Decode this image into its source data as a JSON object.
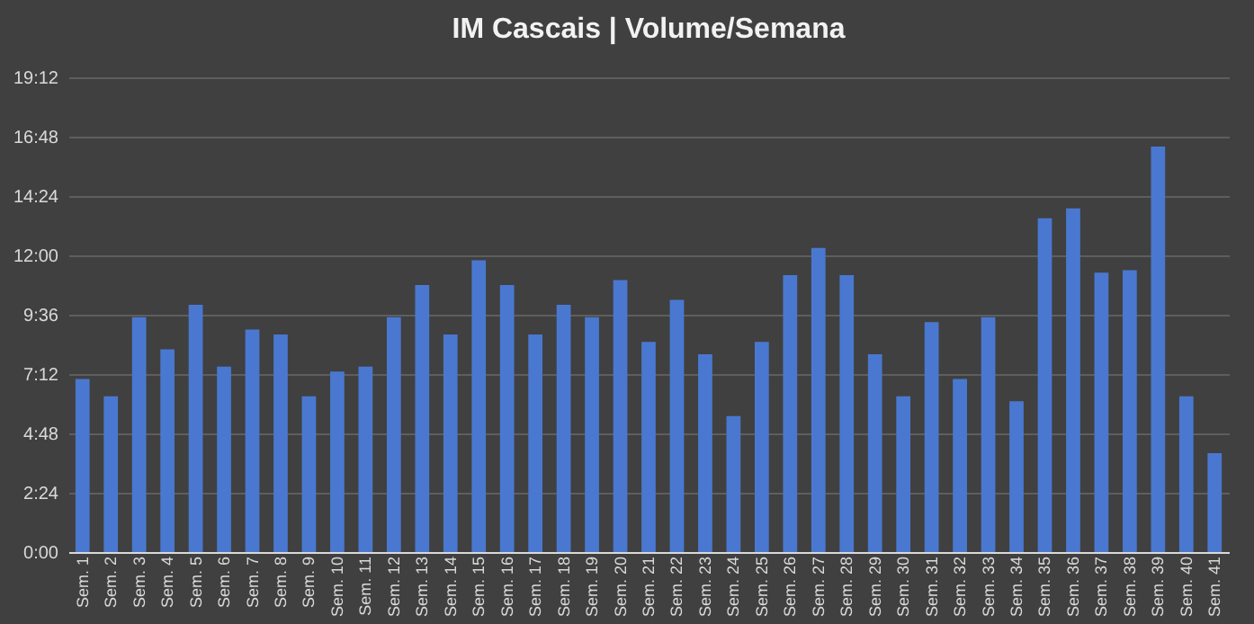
{
  "chart_data": {
    "type": "bar",
    "title": "IM Cascais | Volume/Semana",
    "categories": [
      "Sem. 1",
      "Sem. 2",
      "Sem. 3",
      "Sem. 4",
      "Sem. 5",
      "Sem. 6",
      "Sem. 7",
      "Sem. 8",
      "Sem. 9",
      "Sem. 10",
      "Sem. 11",
      "Sem. 12",
      "Sem. 13",
      "Sem. 14",
      "Sem. 15",
      "Sem. 16",
      "Sem. 17",
      "Sem. 18",
      "Sem. 19",
      "Sem. 20",
      "Sem. 21",
      "Sem. 22",
      "Sem. 23",
      "Sem. 24",
      "Sem. 25",
      "Sem. 26",
      "Sem. 27",
      "Sem. 28",
      "Sem. 29",
      "Sem. 30",
      "Sem. 31",
      "Sem. 32",
      "Sem. 33",
      "Sem. 34",
      "Sem. 35",
      "Sem. 36",
      "Sem. 37",
      "Sem. 38",
      "Sem. 39",
      "Sem. 40",
      "Sem. 41"
    ],
    "values": [
      7.0,
      6.3,
      9.5,
      8.2,
      10.0,
      7.5,
      9.0,
      8.8,
      6.3,
      7.3,
      7.5,
      9.5,
      10.8,
      8.8,
      11.8,
      10.8,
      8.8,
      10.0,
      9.5,
      11.0,
      8.5,
      10.2,
      8.0,
      5.5,
      8.5,
      11.2,
      12.3,
      11.2,
      8.0,
      6.3,
      9.3,
      7.0,
      9.5,
      6.1,
      13.5,
      13.9,
      11.3,
      11.4,
      16.4,
      6.3,
      4.0
    ],
    "color": "#4a78d0",
    "ylim": [
      0,
      19.2
    ],
    "yticks": [
      {
        "value": 0,
        "label": "0:00"
      },
      {
        "value": 2.4,
        "label": "2:24"
      },
      {
        "value": 4.8,
        "label": "4:48"
      },
      {
        "value": 7.2,
        "label": "7:12"
      },
      {
        "value": 9.6,
        "label": "9:36"
      },
      {
        "value": 12,
        "label": "12:00"
      },
      {
        "value": 14.4,
        "label": "14:24"
      },
      {
        "value": 16.8,
        "label": "16:48"
      },
      {
        "value": 19.2,
        "label": "19:12"
      }
    ],
    "grid": true
  }
}
